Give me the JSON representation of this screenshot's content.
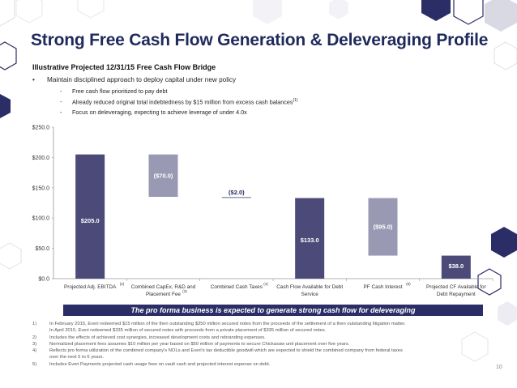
{
  "page": {
    "title": "Strong Free Cash Flow Generation &  Deleveraging Profile",
    "subtitle": "Illustrative Projected 12/31/15 Free Cash Flow Bridge",
    "bullets": [
      {
        "text": "Maintain disciplined approach to deploy capital under new policy",
        "sub": [
          {
            "text": "Free cash flow prioritized to pay debt",
            "sup": ""
          },
          {
            "text": "Already reduced original total indebtedness by $15 million from excess cash balances",
            "sup": "(1)"
          },
          {
            "text": "Focus on deleveraging, expecting to achieve leverage of under 4.0x",
            "sup": ""
          }
        ]
      }
    ],
    "banner": "The pro forma business is expected to generate strong cash flow for deleveraging",
    "footnotes": [
      {
        "num": "1)",
        "lines": [
          "In February 2015, Everi redeemed $15 million of the then outstanding $350 million secured notes from the proceeds of the settlement of a then outstanding litigation matter.",
          "In April 2015, Everi redeemed $335 million of secured notes with proceeds from a private placement of $335 million of secured notes."
        ]
      },
      {
        "num": "2)",
        "lines": [
          "Includes the effects of achieved cost synergies, increased development costs and rebranding expenses."
        ]
      },
      {
        "num": "3)",
        "lines": [
          "Normalized placement fees assumes $10 million per year based on $50 million of payments to secure Chickasaw unit placement over five years."
        ]
      },
      {
        "num": "4)",
        "lines": [
          "Reflects pro forma utilization of the combined company's NOLs and Everi's tax deductible goodwill which are expected to shield the combined company from federal taxes",
          "over the next 5 to 6 years."
        ]
      },
      {
        "num": "5)",
        "lines": [
          "Includes Everi Payments projected cash usage fees on vault cash and projected interest expense on debt."
        ]
      }
    ],
    "page_number": "10",
    "bullet_symbol": "•",
    "sub_bullet_symbol": "-"
  },
  "chart_data": {
    "type": "bar",
    "subtype": "waterfall",
    "title": "Illustrative Projected 12/31/15 Free Cash Flow Bridge",
    "categories": [
      {
        "label": [
          "Projected Adj. EBITDA"
        ],
        "sup": "(2)"
      },
      {
        "label": [
          "Combined CapEx, R&D and",
          "Placement Fee"
        ],
        "sup": "(3)"
      },
      {
        "label": [
          "Combined Cash Taxes"
        ],
        "sup": "(4)"
      },
      {
        "label": [
          "Cash Flow Available for Debt",
          "Service"
        ],
        "sup": ""
      },
      {
        "label": [
          "PF Cash Interest"
        ],
        "sup": "(5)"
      },
      {
        "label": [
          "Projected CF Available for",
          "Debt Repayment"
        ],
        "sup": ""
      }
    ],
    "bars": [
      {
        "base": 0,
        "top": 205.0,
        "label": "$205.0",
        "kind": "total"
      },
      {
        "base": 135.0,
        "top": 205.0,
        "label": "($70.0)",
        "kind": "decrease"
      },
      {
        "base": 133.0,
        "top": 135.0,
        "label": "($2.0)",
        "kind": "decrease"
      },
      {
        "base": 0,
        "top": 133.0,
        "label": "$133.0",
        "kind": "total"
      },
      {
        "base": 38.0,
        "top": 133.0,
        "label": "($95.0)",
        "kind": "decrease"
      },
      {
        "base": 0,
        "top": 38.0,
        "label": "$38.0",
        "kind": "total"
      }
    ],
    "yticks": [
      "$0.0",
      "$50.0",
      "$100.0",
      "$150.0",
      "$200.0",
      "$250.0"
    ],
    "ytick_values": [
      0,
      50,
      100,
      150,
      200,
      250
    ],
    "ylim": [
      0,
      250
    ],
    "colors": {
      "total": "#4b4a79",
      "decrease": "#9a99b4",
      "label": "#ffffff",
      "neg_small_label": "#1f2a5c"
    }
  },
  "colors": {
    "navy": "#2b2d66",
    "title": "#1f2a5c",
    "hex_light": "#e6e6ee"
  }
}
